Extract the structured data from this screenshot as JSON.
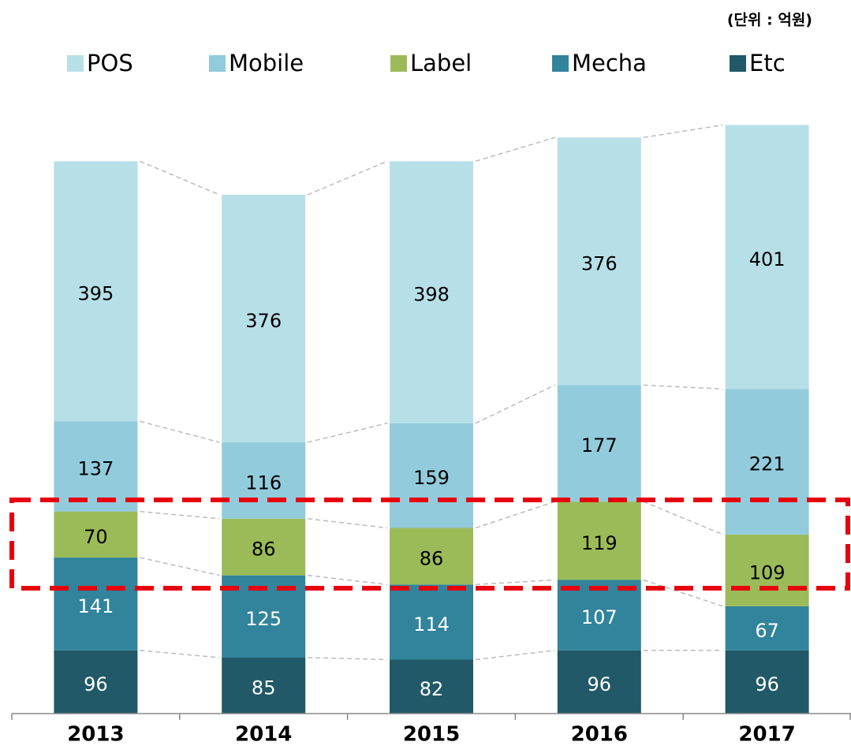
{
  "chart_data": {
    "type": "stacked_bar",
    "subtitle": "(단위 : 억원)",
    "categories": [
      "2013",
      "2014",
      "2015",
      "2016",
      "2017"
    ],
    "series": [
      {
        "name": "Etc",
        "color": "#215968",
        "values": [
          96,
          85,
          82,
          96,
          96
        ]
      },
      {
        "name": "Mecha",
        "color": "#31849b",
        "values": [
          141,
          125,
          114,
          107,
          67
        ]
      },
      {
        "name": "Label",
        "color": "#9bbb59",
        "values": [
          70,
          86,
          86,
          119,
          109
        ]
      },
      {
        "name": "Mobile",
        "color": "#92cbdc",
        "values": [
          137,
          116,
          159,
          177,
          221
        ]
      },
      {
        "name": "POS",
        "color": "#b7dfe8",
        "values": [
          395,
          376,
          398,
          376,
          401
        ]
      }
    ],
    "ylim": [
      0,
      1000
    ]
  }
}
